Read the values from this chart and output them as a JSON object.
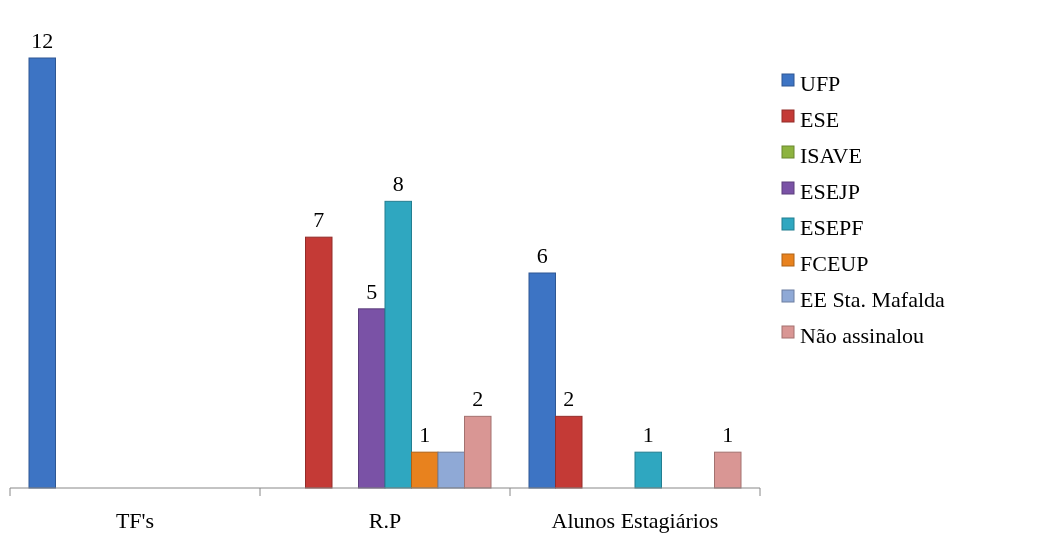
{
  "chart_data": {
    "type": "bar",
    "categories": [
      "TF's",
      "R.P",
      "Alunos Estagiários"
    ],
    "legend": "right",
    "series": [
      {
        "name": "UFP",
        "color": "#3d74c4",
        "values": [
          12,
          null,
          6
        ],
        "value_labels": [
          "12",
          null,
          "6"
        ]
      },
      {
        "name": "ESE",
        "color": "#c43a36",
        "values": [
          null,
          7,
          2
        ],
        "value_labels": [
          null,
          "7",
          "2"
        ]
      },
      {
        "name": "ISAVE",
        "color": "#8db33f",
        "values": [
          null,
          null,
          null
        ]
      },
      {
        "name": "ESEJP",
        "color": "#7a52a6",
        "values": [
          null,
          5,
          null
        ],
        "value_labels": [
          null,
          "5",
          null
        ]
      },
      {
        "name": "ESEPF",
        "color": "#2fa7c0",
        "values": [
          null,
          8,
          1
        ],
        "value_labels": [
          null,
          "8",
          "1"
        ]
      },
      {
        "name": "FCEUP",
        "color": "#e8821e",
        "values": [
          null,
          1,
          null
        ],
        "value_labels": [
          null,
          "1",
          null
        ]
      },
      {
        "name": "EE Sta. Mafalda",
        "color": "#8fa9d6",
        "values": [
          null,
          1,
          null
        ],
        "value_labels": [
          null,
          null,
          null
        ]
      },
      {
        "name": "Não assinalou",
        "color": "#d99694",
        "values": [
          null,
          2,
          1
        ],
        "value_labels": [
          null,
          "2",
          "1"
        ]
      }
    ]
  }
}
